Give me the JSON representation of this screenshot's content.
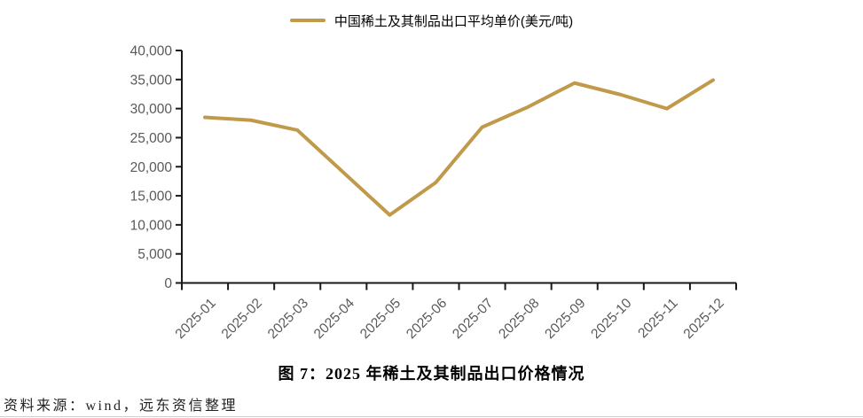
{
  "legend": {
    "label": "中国稀土及其制品出口平均单价(美元/吨)"
  },
  "caption": "图 7：2025 年稀土及其制品出口价格情况",
  "source": "资料来源：wind，远东资信整理",
  "colors": {
    "line": "#C09A4A",
    "axis": "#1a1a1a",
    "tick_label": "#595959",
    "divider": "#cfcfcf"
  },
  "chart_data": {
    "type": "line",
    "title": "",
    "xlabel": "",
    "ylabel": "",
    "categories": [
      "2025-01",
      "2025-02",
      "2025-03",
      "2025-04",
      "2025-05",
      "2025-06",
      "2025-07",
      "2025-08",
      "2025-09",
      "2025-10",
      "2025-11",
      "2025-12"
    ],
    "series": [
      {
        "name": "中国稀土及其制品出口平均单价(美元/吨)",
        "values": [
          28500,
          28000,
          26300,
          19000,
          11700,
          17300,
          26800,
          30300,
          34400,
          32400,
          30000,
          34900
        ]
      }
    ],
    "ylim": [
      0,
      40000
    ],
    "ytick_step": 5000,
    "grid": false,
    "legend_position": "top-center",
    "x_tick_label_rotation": -45
  }
}
